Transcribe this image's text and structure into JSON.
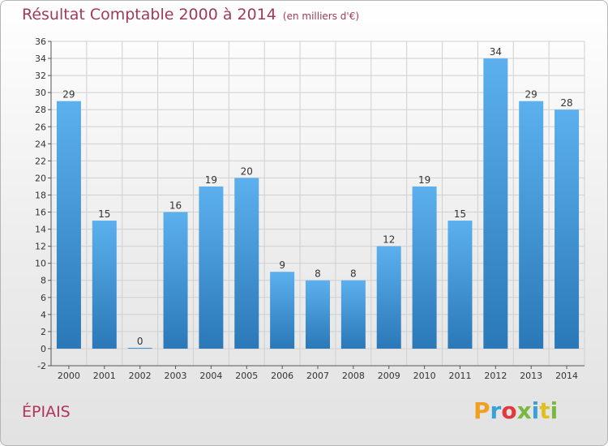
{
  "header": {
    "title": "Résultat Comptable 2000 à 2014",
    "subtitle": "(en milliers d'€)"
  },
  "footer": {
    "commune": "ÉPIAIS",
    "logo": [
      "P",
      "r",
      "o",
      "x",
      "i",
      "t",
      "i"
    ]
  },
  "chart_data": {
    "type": "bar",
    "categories": [
      "2000",
      "2001",
      "2002",
      "2003",
      "2004",
      "2005",
      "2006",
      "2007",
      "2008",
      "2009",
      "2010",
      "2011",
      "2012",
      "2013",
      "2014"
    ],
    "values": [
      29,
      15,
      0,
      16,
      19,
      20,
      9,
      8,
      8,
      12,
      19,
      15,
      34,
      29,
      28
    ],
    "ylim": [
      -2,
      36
    ],
    "yticks": [
      -2,
      0,
      2,
      4,
      6,
      8,
      10,
      12,
      14,
      16,
      18,
      20,
      22,
      24,
      26,
      28,
      30,
      32,
      34,
      36
    ],
    "grid": true,
    "bar_color": "#4a9fe0"
  }
}
